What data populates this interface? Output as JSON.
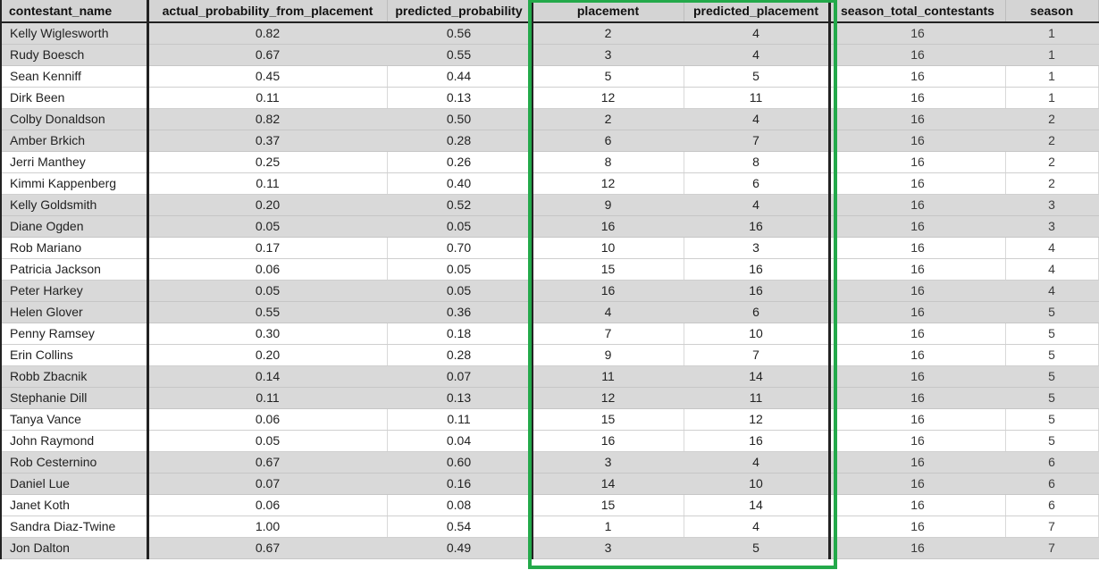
{
  "highlight_color": "#23a94a",
  "columns": {
    "name": "contestant_name",
    "actual": "actual_probability_from_placement",
    "predicted_prob": "predicted_probability",
    "placement": "placement",
    "predicted_placement": "predicted_placement",
    "total": "season_total_contestants",
    "season": "season"
  },
  "rows": [
    {
      "name": "Kelly Wiglesworth",
      "actual": "0.82",
      "pred": "0.56",
      "placement": "2",
      "pred_place": "4",
      "total": "16",
      "season": "1",
      "shade": "gray"
    },
    {
      "name": "Rudy Boesch",
      "actual": "0.67",
      "pred": "0.55",
      "placement": "3",
      "pred_place": "4",
      "total": "16",
      "season": "1",
      "shade": "gray"
    },
    {
      "name": "Sean Kenniff",
      "actual": "0.45",
      "pred": "0.44",
      "placement": "5",
      "pred_place": "5",
      "total": "16",
      "season": "1",
      "shade": "white"
    },
    {
      "name": "Dirk Been",
      "actual": "0.11",
      "pred": "0.13",
      "placement": "12",
      "pred_place": "11",
      "total": "16",
      "season": "1",
      "shade": "white"
    },
    {
      "name": "Colby Donaldson",
      "actual": "0.82",
      "pred": "0.50",
      "placement": "2",
      "pred_place": "4",
      "total": "16",
      "season": "2",
      "shade": "gray"
    },
    {
      "name": "Amber Brkich",
      "actual": "0.37",
      "pred": "0.28",
      "placement": "6",
      "pred_place": "7",
      "total": "16",
      "season": "2",
      "shade": "gray"
    },
    {
      "name": "Jerri Manthey",
      "actual": "0.25",
      "pred": "0.26",
      "placement": "8",
      "pred_place": "8",
      "total": "16",
      "season": "2",
      "shade": "white"
    },
    {
      "name": "Kimmi Kappenberg",
      "actual": "0.11",
      "pred": "0.40",
      "placement": "12",
      "pred_place": "6",
      "total": "16",
      "season": "2",
      "shade": "white"
    },
    {
      "name": "Kelly Goldsmith",
      "actual": "0.20",
      "pred": "0.52",
      "placement": "9",
      "pred_place": "4",
      "total": "16",
      "season": "3",
      "shade": "gray"
    },
    {
      "name": "Diane Ogden",
      "actual": "0.05",
      "pred": "0.05",
      "placement": "16",
      "pred_place": "16",
      "total": "16",
      "season": "3",
      "shade": "gray"
    },
    {
      "name": "Rob Mariano",
      "actual": "0.17",
      "pred": "0.70",
      "placement": "10",
      "pred_place": "3",
      "total": "16",
      "season": "4",
      "shade": "white"
    },
    {
      "name": "Patricia Jackson",
      "actual": "0.06",
      "pred": "0.05",
      "placement": "15",
      "pred_place": "16",
      "total": "16",
      "season": "4",
      "shade": "white"
    },
    {
      "name": "Peter Harkey",
      "actual": "0.05",
      "pred": "0.05",
      "placement": "16",
      "pred_place": "16",
      "total": "16",
      "season": "4",
      "shade": "gray"
    },
    {
      "name": "Helen Glover",
      "actual": "0.55",
      "pred": "0.36",
      "placement": "4",
      "pred_place": "6",
      "total": "16",
      "season": "5",
      "shade": "gray"
    },
    {
      "name": "Penny Ramsey",
      "actual": "0.30",
      "pred": "0.18",
      "placement": "7",
      "pred_place": "10",
      "total": "16",
      "season": "5",
      "shade": "white"
    },
    {
      "name": "Erin Collins",
      "actual": "0.20",
      "pred": "0.28",
      "placement": "9",
      "pred_place": "7",
      "total": "16",
      "season": "5",
      "shade": "white"
    },
    {
      "name": "Robb Zbacnik",
      "actual": "0.14",
      "pred": "0.07",
      "placement": "11",
      "pred_place": "14",
      "total": "16",
      "season": "5",
      "shade": "gray"
    },
    {
      "name": "Stephanie Dill",
      "actual": "0.11",
      "pred": "0.13",
      "placement": "12",
      "pred_place": "11",
      "total": "16",
      "season": "5",
      "shade": "gray"
    },
    {
      "name": "Tanya Vance",
      "actual": "0.06",
      "pred": "0.11",
      "placement": "15",
      "pred_place": "12",
      "total": "16",
      "season": "5",
      "shade": "white"
    },
    {
      "name": "John Raymond",
      "actual": "0.05",
      "pred": "0.04",
      "placement": "16",
      "pred_place": "16",
      "total": "16",
      "season": "5",
      "shade": "white"
    },
    {
      "name": "Rob Cesternino",
      "actual": "0.67",
      "pred": "0.60",
      "placement": "3",
      "pred_place": "4",
      "total": "16",
      "season": "6",
      "shade": "gray"
    },
    {
      "name": "Daniel Lue",
      "actual": "0.07",
      "pred": "0.16",
      "placement": "14",
      "pred_place": "10",
      "total": "16",
      "season": "6",
      "shade": "gray"
    },
    {
      "name": "Janet Koth",
      "actual": "0.06",
      "pred": "0.08",
      "placement": "15",
      "pred_place": "14",
      "total": "16",
      "season": "6",
      "shade": "white"
    },
    {
      "name": "Sandra Diaz-Twine",
      "actual": "1.00",
      "pred": "0.54",
      "placement": "1",
      "pred_place": "4",
      "total": "16",
      "season": "7",
      "shade": "white"
    },
    {
      "name": "Jon Dalton",
      "actual": "0.67",
      "pred": "0.49",
      "placement": "3",
      "pred_place": "5",
      "total": "16",
      "season": "7",
      "shade": "gray"
    }
  ]
}
